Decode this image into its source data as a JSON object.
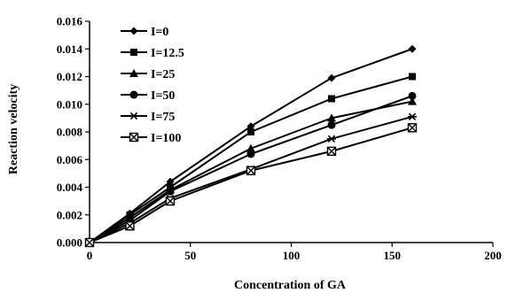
{
  "chart_data": {
    "type": "line",
    "title": "",
    "xlabel": "Concentration of GA",
    "ylabel": "Reaction velocity",
    "xlim": [
      0,
      200
    ],
    "ylim": [
      0,
      0.016
    ],
    "x_ticks": [
      "0",
      "50",
      "100",
      "150",
      "200"
    ],
    "y_ticks": [
      "0.000",
      "0.002",
      "0.004",
      "0.006",
      "0.008",
      "0.010",
      "0.012",
      "0.014",
      "0.016"
    ],
    "grid": false,
    "legend_position": "top-left",
    "x": [
      0,
      20,
      40,
      80,
      120,
      160
    ],
    "series": [
      {
        "name": "I=0",
        "marker": "diamond",
        "values": [
          0,
          0.0021,
          0.0044,
          0.0084,
          0.0119,
          0.014
        ]
      },
      {
        "name": "I=12.5",
        "marker": "square",
        "values": [
          0,
          0.002,
          0.004,
          0.008,
          0.0104,
          0.012
        ]
      },
      {
        "name": "I=25",
        "marker": "triangle",
        "values": [
          0,
          0.0018,
          0.0038,
          0.0068,
          0.009,
          0.0102
        ]
      },
      {
        "name": "I=50",
        "marker": "circle",
        "values": [
          0,
          0.0016,
          0.0037,
          0.0064,
          0.0085,
          0.0106
        ]
      },
      {
        "name": "I=75",
        "marker": "asterisk",
        "values": [
          0,
          0.0014,
          0.0032,
          0.0053,
          0.0075,
          0.0091
        ]
      },
      {
        "name": "I=100",
        "marker": "boxx",
        "values": [
          0,
          0.0012,
          0.003,
          0.0052,
          0.0066,
          0.0083
        ]
      }
    ]
  }
}
